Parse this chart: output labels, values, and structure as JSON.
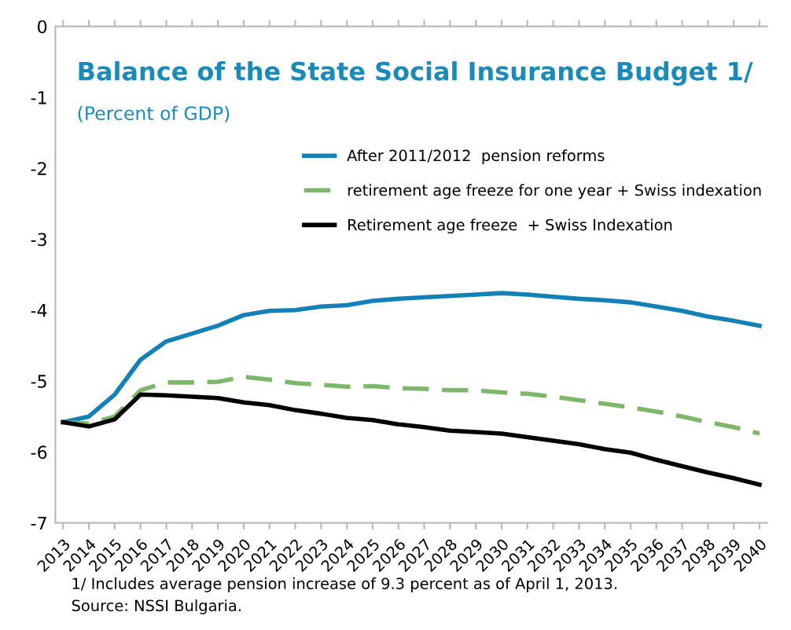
{
  "chart_data": {
    "type": "line",
    "title": "Balance of the State Social Insurance Budget 1/",
    "subtitle": "(Percent of GDP)",
    "categories": [
      "2013",
      "2014",
      "2015",
      "2016",
      "2017",
      "2018",
      "2019",
      "2020",
      "2021",
      "2022",
      "2023",
      "2024",
      "2025",
      "2026",
      "2027",
      "2028",
      "2029",
      "2030",
      "2031",
      "2032",
      "2033",
      "2034",
      "2035",
      "2036",
      "2037",
      "2038",
      "2039",
      "2040"
    ],
    "series": [
      {
        "name": "After 2011/2012  pension reforms",
        "color": "#1380b8",
        "line_style": "solid",
        "values": [
          -5.58,
          -5.5,
          -5.19,
          -4.7,
          -4.44,
          -4.33,
          -4.22,
          -4.07,
          -4.01,
          -4.0,
          -3.95,
          -3.93,
          -3.87,
          -3.84,
          -3.82,
          -3.8,
          -3.78,
          -3.76,
          -3.78,
          -3.81,
          -3.84,
          -3.86,
          -3.89,
          -3.95,
          -4.01,
          -4.09,
          -4.15,
          -4.22
        ]
      },
      {
        "name": "retirement age freeze for one year + Swiss indexation",
        "color": "#7db86a",
        "line_style": "dashed",
        "values": [
          -5.58,
          -5.6,
          -5.5,
          -5.13,
          -5.02,
          -5.02,
          -5.01,
          -4.94,
          -4.98,
          -5.03,
          -5.05,
          -5.08,
          -5.07,
          -5.1,
          -5.11,
          -5.13,
          -5.13,
          -5.16,
          -5.18,
          -5.22,
          -5.27,
          -5.32,
          -5.37,
          -5.43,
          -5.5,
          -5.58,
          -5.65,
          -5.74
        ]
      },
      {
        "name": "Retirement age freeze  + Swiss Indexation",
        "color": "#000000",
        "line_style": "solid",
        "values": [
          -5.58,
          -5.64,
          -5.54,
          -5.19,
          -5.2,
          -5.22,
          -5.24,
          -5.3,
          -5.34,
          -5.41,
          -5.46,
          -5.52,
          -5.55,
          -5.61,
          -5.65,
          -5.7,
          -5.72,
          -5.74,
          -5.79,
          -5.84,
          -5.89,
          -5.96,
          -6.01,
          -6.11,
          -6.2,
          -6.29,
          -6.37,
          -6.46
        ]
      }
    ],
    "ylim": [
      -7,
      0
    ],
    "yticks": [
      0,
      -1,
      -2,
      -3,
      -4,
      -5,
      -6,
      -7
    ],
    "grid": false,
    "legend": "top",
    "marker": "none",
    "annotations": [
      "1/ Includes average pension increase of 9.3 percent as of April 1, 2013.",
      "Source: NSSI Bulgaria."
    ]
  }
}
